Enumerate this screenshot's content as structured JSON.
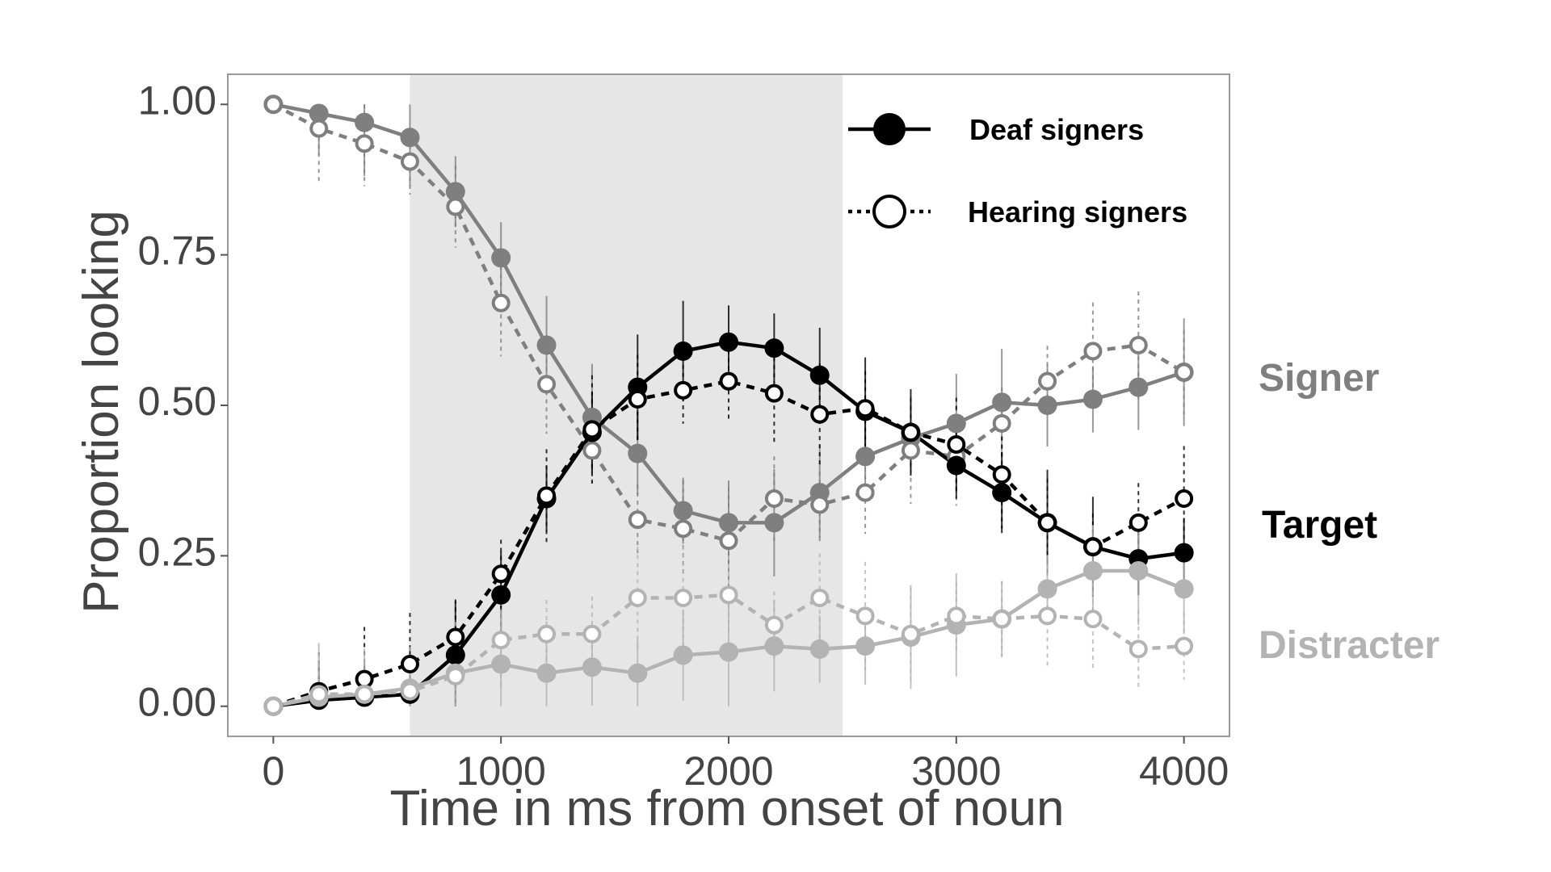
{
  "chart_data": {
    "type": "line",
    "xlabel": "Time in ms from onset of noun",
    "ylabel": "Proportion looking",
    "xlim": [
      -200,
      4200
    ],
    "ylim": [
      -0.05,
      1.05
    ],
    "x_ticks": [
      0,
      1000,
      2000,
      3000,
      4000
    ],
    "x_tick_labels": [
      "0",
      "1000",
      "2000",
      "3000",
      "4000"
    ],
    "y_ticks": [
      0,
      0.25,
      0.5,
      0.75,
      1
    ],
    "y_tick_labels": [
      "0.00",
      "0.25",
      "0.50",
      "0.75",
      "1.00"
    ],
    "grid": false,
    "shaded_region": {
      "x_start": 600,
      "x_end": 2500,
      "color": "#e6e6e6"
    },
    "legend": {
      "position": "top-right",
      "entries": [
        {
          "label": "Deaf signers",
          "marker": "filled",
          "line": "solid"
        },
        {
          "label": "Hearing signers",
          "marker": "open",
          "line": "dotted"
        }
      ]
    },
    "aoi_labels": [
      {
        "label": "Signer",
        "color": "#7f7f7f"
      },
      {
        "label": "Target",
        "color": "#000000"
      },
      {
        "label": "Distracter",
        "color": "#b3b3b3"
      }
    ],
    "x": [
      0,
      200,
      400,
      600,
      800,
      1000,
      1200,
      1400,
      1600,
      1800,
      2000,
      2200,
      2400,
      2600,
      2800,
      3000,
      3200,
      3400,
      3600,
      3800,
      4000
    ],
    "series": [
      {
        "name": "Signer",
        "group": "Deaf signers",
        "color": "#7f7f7f",
        "filled": true,
        "dash": "solid",
        "values": [
          1.0,
          0.985,
          0.97,
          0.945,
          0.855,
          0.745,
          0.6,
          0.48,
          0.42,
          0.325,
          0.305,
          0.305,
          0.355,
          0.415,
          0.445,
          0.47,
          0.505,
          0.5,
          0.51,
          0.53,
          0.555
        ]
      },
      {
        "name": "Signer",
        "group": "Hearing signers",
        "color": "#7f7f7f",
        "filled": false,
        "dash": "dashed",
        "values": [
          1.0,
          0.96,
          0.935,
          0.905,
          0.83,
          0.67,
          0.535,
          0.425,
          0.31,
          0.295,
          0.275,
          0.345,
          0.335,
          0.355,
          0.425,
          0.415,
          0.47,
          0.54,
          0.59,
          0.6,
          0.555
        ]
      },
      {
        "name": "Target",
        "group": "Deaf signers",
        "color": "#000000",
        "filled": true,
        "dash": "solid",
        "values": [
          0.0,
          0.01,
          0.015,
          0.02,
          0.085,
          0.185,
          0.345,
          0.455,
          0.53,
          0.59,
          0.605,
          0.595,
          0.55,
          0.49,
          0.455,
          0.4,
          0.355,
          0.305,
          0.265,
          0.245,
          0.255
        ]
      },
      {
        "name": "Target",
        "group": "Hearing signers",
        "color": "#000000",
        "filled": false,
        "dash": "dashed",
        "values": [
          0.0,
          0.025,
          0.045,
          0.07,
          0.115,
          0.22,
          0.35,
          0.46,
          0.51,
          0.525,
          0.54,
          0.52,
          0.485,
          0.495,
          0.455,
          0.435,
          0.385,
          0.305,
          0.265,
          0.305,
          0.345
        ]
      },
      {
        "name": "Distracter",
        "group": "Deaf signers",
        "color": "#b3b3b3",
        "filled": true,
        "dash": "solid",
        "values": [
          0.0,
          0.015,
          0.02,
          0.03,
          0.055,
          0.07,
          0.055,
          0.065,
          0.055,
          0.085,
          0.09,
          0.1,
          0.095,
          0.1,
          0.115,
          0.135,
          0.145,
          0.195,
          0.225,
          0.225,
          0.195
        ]
      },
      {
        "name": "Distracter",
        "group": "Hearing signers",
        "color": "#b3b3b3",
        "filled": false,
        "dash": "dashed",
        "values": [
          0.0,
          0.02,
          0.02,
          0.025,
          0.05,
          0.11,
          0.12,
          0.12,
          0.18,
          0.18,
          0.185,
          0.135,
          0.18,
          0.15,
          0.12,
          0.15,
          0.145,
          0.15,
          0.145,
          0.095,
          0.1
        ]
      }
    ]
  }
}
